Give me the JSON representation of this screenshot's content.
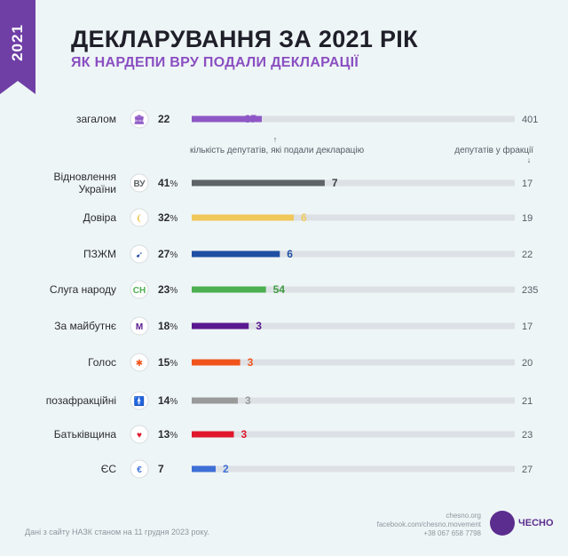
{
  "header": {
    "year_tag": "2021",
    "title": "ДЕКЛАРУВАННЯ ЗА 2021 РІК",
    "subtitle": "ЯК НАРДЕПИ ВРУ ПОДАЛИ ДЕКЛАРАЦІЇ"
  },
  "notes": {
    "count_note": "кількість депутатів, які подали декларацію",
    "total_note": "депутатів у фракції"
  },
  "footer": {
    "source": "Дані з сайту НАЗК станом на 11 грудня 2023 року.",
    "site": "chesno.org",
    "facebook": "facebook.com/chesno.movement",
    "phone": "+38 067 658 7798",
    "logo_text": "ЧЕСНО"
  },
  "chart_data": {
    "type": "bar",
    "orientation": "horizontal",
    "categories": [
      "загалом",
      "Відновлення України",
      "Довіра",
      "ПЗЖМ",
      "Слуга народу",
      "За майбутнє",
      "Голос",
      "позафракційні",
      "Батьківщина",
      "ЄС"
    ],
    "category_lines": [
      [
        "загалом"
      ],
      [
        "Відновлення",
        "України"
      ],
      [
        "Довіра"
      ],
      [
        "ПЗЖМ"
      ],
      [
        "Слуга народу"
      ],
      [
        "За майбутнє"
      ],
      [
        "Голос"
      ],
      [
        "позафракційні"
      ],
      [
        "Батьківщина"
      ],
      [
        "ЄС"
      ]
    ],
    "percent_labels": [
      "22",
      "41",
      "32",
      "27",
      "23",
      "18",
      "15",
      "14",
      "13",
      "7"
    ],
    "show_percent_sign": [
      false,
      true,
      true,
      true,
      true,
      true,
      true,
      true,
      true,
      false
    ],
    "submitted": [
      87,
      7,
      6,
      6,
      54,
      3,
      3,
      3,
      3,
      2
    ],
    "totals": [
      401,
      17,
      19,
      22,
      235,
      17,
      20,
      21,
      23,
      27
    ],
    "percentages": [
      22,
      41,
      32,
      27,
      23,
      18,
      15,
      14,
      13,
      7
    ],
    "colors": [
      "#8e57c6",
      "#5d6367",
      "#f0c85a",
      "#1f4fa3",
      "#4caf50",
      "#5a1890",
      "#f0541c",
      "#9a9a9a",
      "#e0162b",
      "#3d6fd6"
    ],
    "label_colors": [
      "#ffffff",
      "#3a3f44",
      "#f0c85a",
      "#1f4fa3",
      "#3f9c43",
      "#5a1890",
      "#f0541c",
      "#9a9a9a",
      "#e0162b",
      "#3d6fd6"
    ],
    "icons": [
      "parliament-icon",
      "vu-party-icon",
      "dovira-party-icon",
      "pzzhm-party-icon",
      "sluha-narodu-icon",
      "za-maibutnie-icon",
      "holos-icon",
      "person-icon",
      "heart-icon",
      "yes-party-icon"
    ],
    "icon_glyphs": [
      "🏛",
      "ВУ",
      "❨",
      "➹",
      "СН",
      "М",
      "✱",
      "🚹",
      "♥",
      "€"
    ],
    "track_color": "#dde1e5"
  }
}
